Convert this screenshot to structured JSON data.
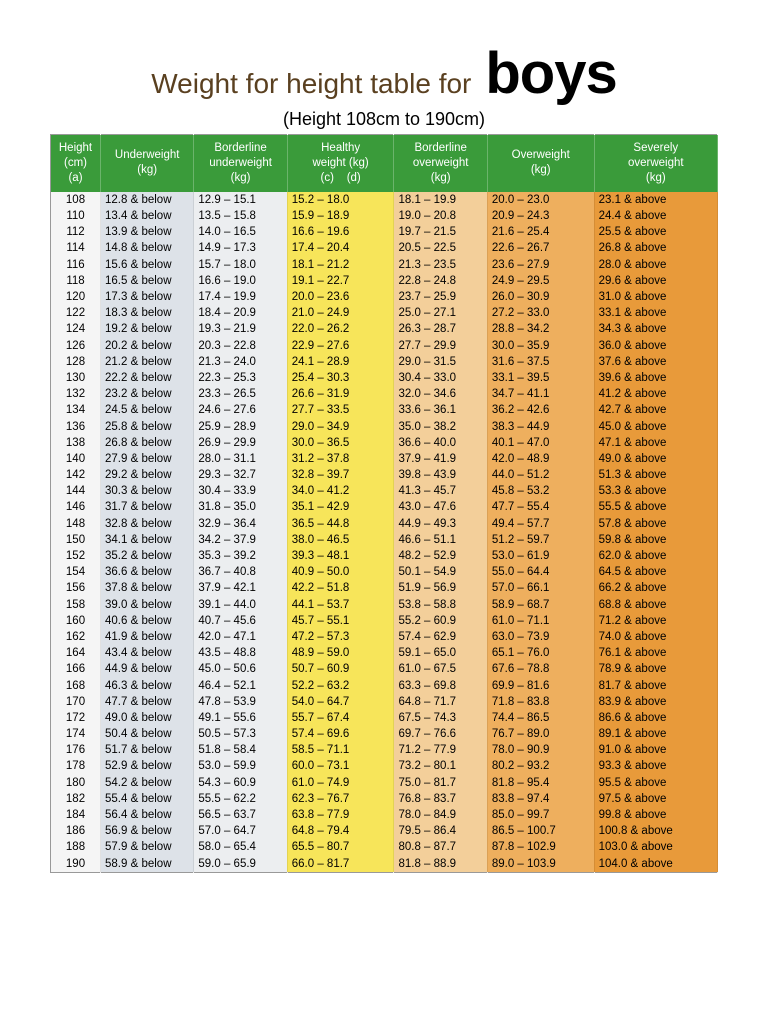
{
  "title_main": "Weight for height table for",
  "title_boys": "boys",
  "subtitle": "(Height 108cm to 190cm)",
  "header_bg": "#3a9b3a",
  "columns": [
    {
      "label": "Height (cm) (a)",
      "bg": "#f5f5f5"
    },
    {
      "label": "Underweight (kg)",
      "bg": "#dde2e8"
    },
    {
      "label": "Borderline underweight (kg)",
      "bg": "#eceef0"
    },
    {
      "label": "Healthy weight (kg) (c)    (d)",
      "bg": "#f7e55a"
    },
    {
      "label": "Borderline overweight (kg)",
      "bg": "#f3cf9a"
    },
    {
      "label": "Overweight (kg)",
      "bg": "#eeaf5e"
    },
    {
      "label": "Severely overweight (kg)",
      "bg": "#e89a3a"
    }
  ],
  "rows": [
    [
      "108",
      "12.8 & below",
      "12.9 – 15.1",
      "15.2 – 18.0",
      "18.1 – 19.9",
      "20.0 – 23.0",
      "23.1 & above"
    ],
    [
      "110",
      "13.4 & below",
      "13.5 – 15.8",
      "15.9 – 18.9",
      "19.0 – 20.8",
      "20.9 – 24.3",
      "24.4 & above"
    ],
    [
      "112",
      "13.9 & below",
      "14.0 – 16.5",
      "16.6 – 19.6",
      "19.7 – 21.5",
      "21.6 – 25.4",
      "25.5 & above"
    ],
    [
      "114",
      "14.8 & below",
      "14.9 – 17.3",
      "17.4 – 20.4",
      "20.5 – 22.5",
      "22.6 – 26.7",
      "26.8 & above"
    ],
    [
      "116",
      "15.6 & below",
      "15.7 – 18.0",
      "18.1 – 21.2",
      "21.3 – 23.5",
      "23.6 – 27.9",
      "28.0 & above"
    ],
    [
      "118",
      "16.5 & below",
      "16.6 – 19.0",
      "19.1 – 22.7",
      "22.8 – 24.8",
      "24.9 – 29.5",
      "29.6 & above"
    ],
    [
      "120",
      "17.3 & below",
      "17.4 – 19.9",
      "20.0 – 23.6",
      "23.7 – 25.9",
      "26.0 – 30.9",
      "31.0 & above"
    ],
    [
      "122",
      "18.3 & below",
      "18.4 – 20.9",
      "21.0 – 24.9",
      "25.0 – 27.1",
      "27.2 – 33.0",
      "33.1 & above"
    ],
    [
      "124",
      "19.2 & below",
      "19.3 – 21.9",
      "22.0 – 26.2",
      "26.3 – 28.7",
      "28.8 – 34.2",
      "34.3 & above"
    ],
    [
      "126",
      "20.2 & below",
      "20.3 – 22.8",
      "22.9 – 27.6",
      "27.7 – 29.9",
      "30.0 – 35.9",
      "36.0 & above"
    ],
    [
      "128",
      "21.2 & below",
      "21.3 – 24.0",
      "24.1 – 28.9",
      "29.0 – 31.5",
      "31.6 – 37.5",
      "37.6 & above"
    ],
    [
      "130",
      "22.2 & below",
      "22.3 – 25.3",
      "25.4 – 30.3",
      "30.4 – 33.0",
      "33.1 – 39.5",
      "39.6 & above"
    ],
    [
      "132",
      "23.2 & below",
      "23.3 – 26.5",
      "26.6 – 31.9",
      "32.0 – 34.6",
      "34.7 – 41.1",
      "41.2 & above"
    ],
    [
      "134",
      "24.5 & below",
      "24.6 – 27.6",
      "27.7 – 33.5",
      "33.6 – 36.1",
      "36.2 – 42.6",
      "42.7 & above"
    ],
    [
      "136",
      "25.8 & below",
      "25.9 – 28.9",
      "29.0 – 34.9",
      "35.0 – 38.2",
      "38.3 – 44.9",
      "45.0 & above"
    ],
    [
      "138",
      "26.8 & below",
      "26.9 – 29.9",
      "30.0 – 36.5",
      "36.6 – 40.0",
      "40.1 – 47.0",
      "47.1 & above"
    ],
    [
      "140",
      "27.9 & below",
      "28.0 – 31.1",
      "31.2 – 37.8",
      "37.9 – 41.9",
      "42.0 – 48.9",
      "49.0 & above"
    ],
    [
      "142",
      "29.2 & below",
      "29.3 – 32.7",
      "32.8 – 39.7",
      "39.8 – 43.9",
      "44.0 – 51.2",
      "51.3 & above"
    ],
    [
      "144",
      "30.3 & below",
      "30.4 – 33.9",
      "34.0 – 41.2",
      "41.3 – 45.7",
      "45.8 – 53.2",
      "53.3 & above"
    ],
    [
      "146",
      "31.7 & below",
      "31.8 – 35.0",
      "35.1 – 42.9",
      "43.0 – 47.6",
      "47.7 – 55.4",
      "55.5 & above"
    ],
    [
      "148",
      "32.8 & below",
      "32.9 – 36.4",
      "36.5 – 44.8",
      "44.9 – 49.3",
      "49.4 – 57.7",
      "57.8 & above"
    ],
    [
      "150",
      "34.1 & below",
      "34.2 – 37.9",
      "38.0 – 46.5",
      "46.6 – 51.1",
      "51.2 – 59.7",
      "59.8 & above"
    ],
    [
      "152",
      "35.2 & below",
      "35.3 – 39.2",
      "39.3 – 48.1",
      "48.2 – 52.9",
      "53.0 – 61.9",
      "62.0 & above"
    ],
    [
      "154",
      "36.6 & below",
      "36.7 – 40.8",
      "40.9 – 50.0",
      "50.1 – 54.9",
      "55.0 – 64.4",
      "64.5 & above"
    ],
    [
      "156",
      "37.8 & below",
      "37.9 – 42.1",
      "42.2 – 51.8",
      "51.9 – 56.9",
      "57.0 – 66.1",
      "66.2 & above"
    ],
    [
      "158",
      "39.0 & below",
      "39.1 – 44.0",
      "44.1 – 53.7",
      "53.8 – 58.8",
      "58.9 – 68.7",
      "68.8 & above"
    ],
    [
      "160",
      "40.6 & below",
      "40.7 – 45.6",
      "45.7 – 55.1",
      "55.2 – 60.9",
      "61.0 – 71.1",
      "71.2 & above"
    ],
    [
      "162",
      "41.9 & below",
      "42.0 – 47.1",
      "47.2 – 57.3",
      "57.4 – 62.9",
      "63.0 – 73.9",
      "74.0 & above"
    ],
    [
      "164",
      "43.4 & below",
      "43.5 – 48.8",
      "48.9 – 59.0",
      "59.1 – 65.0",
      "65.1 – 76.0",
      "76.1 & above"
    ],
    [
      "166",
      "44.9 & below",
      "45.0 – 50.6",
      "50.7 – 60.9",
      "61.0 – 67.5",
      "67.6 – 78.8",
      "78.9 & above"
    ],
    [
      "168",
      "46.3 & below",
      "46.4 – 52.1",
      "52.2 – 63.2",
      "63.3 – 69.8",
      "69.9 – 81.6",
      "81.7 & above"
    ],
    [
      "170",
      "47.7 & below",
      "47.8 – 53.9",
      "54.0 – 64.7",
      "64.8 – 71.7",
      "71.8 – 83.8",
      "83.9 & above"
    ],
    [
      "172",
      "49.0 & below",
      "49.1 – 55.6",
      "55.7 – 67.4",
      "67.5 – 74.3",
      "74.4 – 86.5",
      "86.6 & above"
    ],
    [
      "174",
      "50.4 & below",
      "50.5 – 57.3",
      "57.4 – 69.6",
      "69.7 – 76.6",
      "76.7 – 89.0",
      "89.1 & above"
    ],
    [
      "176",
      "51.7 & below",
      "51.8 – 58.4",
      "58.5 – 71.1",
      "71.2 – 77.9",
      "78.0 – 90.9",
      "91.0 & above"
    ],
    [
      "178",
      "52.9 & below",
      "53.0 – 59.9",
      "60.0 – 73.1",
      "73.2 – 80.1",
      "80.2 – 93.2",
      "93.3 & above"
    ],
    [
      "180",
      "54.2 & below",
      "54.3 – 60.9",
      "61.0 – 74.9",
      "75.0 – 81.7",
      "81.8 – 95.4",
      "95.5 & above"
    ],
    [
      "182",
      "55.4 & below",
      "55.5 – 62.2",
      "62.3 – 76.7",
      "76.8 – 83.7",
      "83.8 – 97.4",
      "97.5 & above"
    ],
    [
      "184",
      "56.4 & below",
      "56.5 – 63.7",
      "63.8 – 77.9",
      "78.0 – 84.9",
      "85.0 – 99.7",
      "99.8 & above"
    ],
    [
      "186",
      "56.9 & below",
      "57.0 – 64.7",
      "64.8 – 79.4",
      "79.5 – 86.4",
      "86.5 – 100.7",
      "100.8 & above"
    ],
    [
      "188",
      "57.9 & below",
      "58.0 – 65.4",
      "65.5 – 80.7",
      "80.8 – 87.7",
      "87.8 – 102.9",
      "103.0 & above"
    ],
    [
      "190",
      "58.9 & below",
      "59.0 – 65.9",
      "66.0 – 81.7",
      "81.8 – 88.9",
      "89.0 – 103.9",
      "104.0 & above"
    ]
  ]
}
